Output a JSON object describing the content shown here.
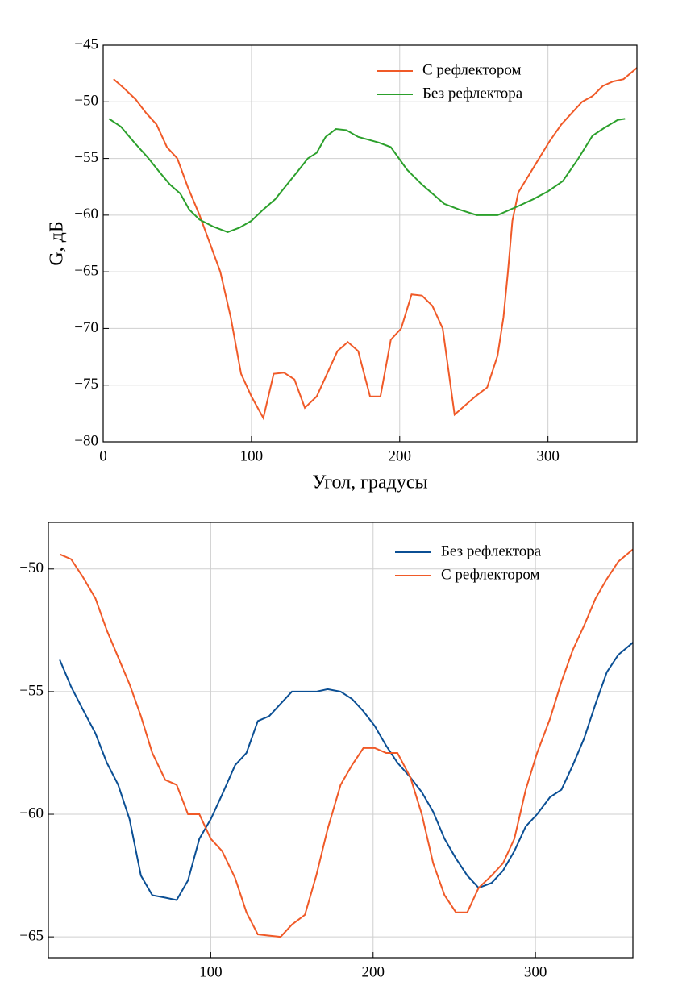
{
  "chart_data": [
    {
      "type": "line",
      "y_label": "G, дБ",
      "x_label": "Угол, градусы",
      "legend": "upper right",
      "grid": true,
      "xlim": [
        0,
        360
      ],
      "xticks": [
        0,
        100,
        200,
        300
      ],
      "ylim": [
        -80,
        -45
      ],
      "yticks": [
        {
          "value": -45,
          "label": "−45"
        },
        {
          "value": -50,
          "label": "−50"
        },
        {
          "value": -55,
          "label": "−55"
        },
        {
          "value": -60,
          "label": "−60"
        },
        {
          "value": -65,
          "label": "−65"
        },
        {
          "value": -70,
          "label": "−70"
        },
        {
          "value": -75,
          "label": "−75"
        },
        {
          "value": -80,
          "label": "−80"
        }
      ],
      "series": [
        {
          "name": "С рефлектором",
          "color": "#f05a28",
          "x": [
            7,
            14,
            22,
            29,
            36,
            43,
            50,
            57,
            65,
            72,
            79,
            86,
            93,
            100,
            108,
            115,
            122,
            129,
            136,
            144,
            151,
            158,
            165,
            172,
            180,
            187,
            194,
            201,
            208,
            215,
            222,
            229,
            237,
            244,
            251,
            259,
            266,
            270,
            273,
            276,
            280,
            287,
            294,
            301,
            309,
            316,
            323,
            330,
            337,
            344,
            351,
            360
          ],
          "values": [
            -48,
            -48.8,
            -49.8,
            -51,
            -52,
            -54,
            -55,
            -57.5,
            -60,
            -62.5,
            -65,
            -69,
            -74,
            -76,
            -77.9,
            -74,
            -73.9,
            -74.5,
            -77,
            -76,
            -74,
            -72,
            -71.2,
            -72,
            -76,
            -76,
            -71,
            -70,
            -67,
            -67.1,
            -68,
            -70,
            -77.6,
            -76.8,
            -76,
            -75.2,
            -72.4,
            -69,
            -65,
            -60.5,
            -58,
            -56.5,
            -55,
            -53.5,
            -52,
            -51,
            -50,
            -49.5,
            -48.6,
            -48.2,
            -48,
            -47
          ]
        },
        {
          "name": "Без рефлектора",
          "color": "#2ca02c",
          "x": [
            4,
            12,
            21,
            30,
            38,
            45,
            52,
            58,
            65,
            74,
            84,
            92,
            100,
            108,
            116,
            124,
            132,
            138,
            144,
            150,
            157,
            164,
            172,
            186,
            194,
            205,
            215,
            230,
            240,
            252,
            266,
            280,
            290,
            300,
            310,
            320,
            330,
            338,
            347,
            352
          ],
          "values": [
            -51.5,
            -52.2,
            -53.6,
            -54.9,
            -56.2,
            -57.3,
            -58.1,
            -59.5,
            -60.4,
            -61,
            -61.5,
            -61.1,
            -60.5,
            -59.5,
            -58.6,
            -57.3,
            -56,
            -55,
            -54.5,
            -53.1,
            -52.4,
            -52.5,
            -53.1,
            -53.6,
            -54,
            -56,
            -57.3,
            -59,
            -59.5,
            -60,
            -60,
            -59.2,
            -58.6,
            -57.9,
            -57,
            -55.1,
            -53,
            -52.3,
            -51.6,
            -51.5
          ]
        }
      ]
    },
    {
      "type": "line",
      "legend": "upper right",
      "grid": true,
      "xlim": [
        0,
        360
      ],
      "xticks": [
        100,
        200,
        300
      ],
      "ylim": [
        -65.85,
        -48.1
      ],
      "yticks": [
        {
          "value": -50,
          "label": "−50"
        },
        {
          "value": -55,
          "label": "−55"
        },
        {
          "value": -60,
          "label": "−60"
        },
        {
          "value": -65,
          "label": "−65"
        }
      ],
      "series": [
        {
          "name": "Без рефлектора",
          "color": "#0b4f94",
          "x": [
            7,
            14,
            21,
            29,
            36,
            43,
            50,
            57,
            64,
            72,
            79,
            86,
            93,
            100,
            107,
            115,
            122,
            129,
            136,
            150,
            165,
            172,
            180,
            187,
            194,
            201,
            208,
            215,
            223,
            230,
            237,
            244,
            251,
            258,
            265,
            273,
            280,
            287,
            294,
            301,
            309,
            316,
            323,
            330,
            337,
            344,
            351,
            360
          ],
          "values": [
            -53.7,
            -54.8,
            -55.7,
            -56.7,
            -57.9,
            -58.8,
            -60.2,
            -62.5,
            -63.3,
            -63.4,
            -63.5,
            -62.7,
            -61,
            -60.2,
            -59.2,
            -58,
            -57.5,
            -56.2,
            -56,
            -55,
            -55,
            -54.9,
            -55,
            -55.3,
            -55.8,
            -56.4,
            -57.2,
            -57.9,
            -58.5,
            -59.1,
            -59.9,
            -61,
            -61.8,
            -62.5,
            -63,
            -62.8,
            -62.3,
            -61.5,
            -60.5,
            -60,
            -59.3,
            -59,
            -58,
            -56.9,
            -55.5,
            -54.2,
            -53.5,
            -53
          ]
        },
        {
          "name": "С рефлектором",
          "color": "#f05a28",
          "x": [
            7,
            14,
            21,
            29,
            36,
            43,
            50,
            57,
            64,
            72,
            79,
            86,
            93,
            100,
            107,
            115,
            122,
            129,
            136,
            143,
            150,
            158,
            165,
            172,
            180,
            187,
            194,
            201,
            208,
            215,
            223,
            230,
            237,
            244,
            251,
            258,
            265,
            273,
            280,
            287,
            294,
            301,
            309,
            316,
            323,
            330,
            337,
            344,
            351,
            360
          ],
          "values": [
            -49.4,
            -49.6,
            -50.3,
            -51.2,
            -52.5,
            -53.6,
            -54.7,
            -56,
            -57.5,
            -58.6,
            -58.8,
            -60,
            -60,
            -61,
            -61.5,
            -62.6,
            -64,
            -64.9,
            -64.95,
            -65,
            -64.5,
            -64.1,
            -62.5,
            -60.6,
            -58.8,
            -58,
            -57.3,
            -57.3,
            -57.5,
            -57.5,
            -58.5,
            -60,
            -62,
            -63.3,
            -64,
            -64,
            -63,
            -62.5,
            -62,
            -61,
            -59,
            -57.5,
            -56.1,
            -54.6,
            -53.3,
            -52.3,
            -51.2,
            -50.4,
            -49.7,
            -49.2
          ]
        }
      ]
    }
  ]
}
